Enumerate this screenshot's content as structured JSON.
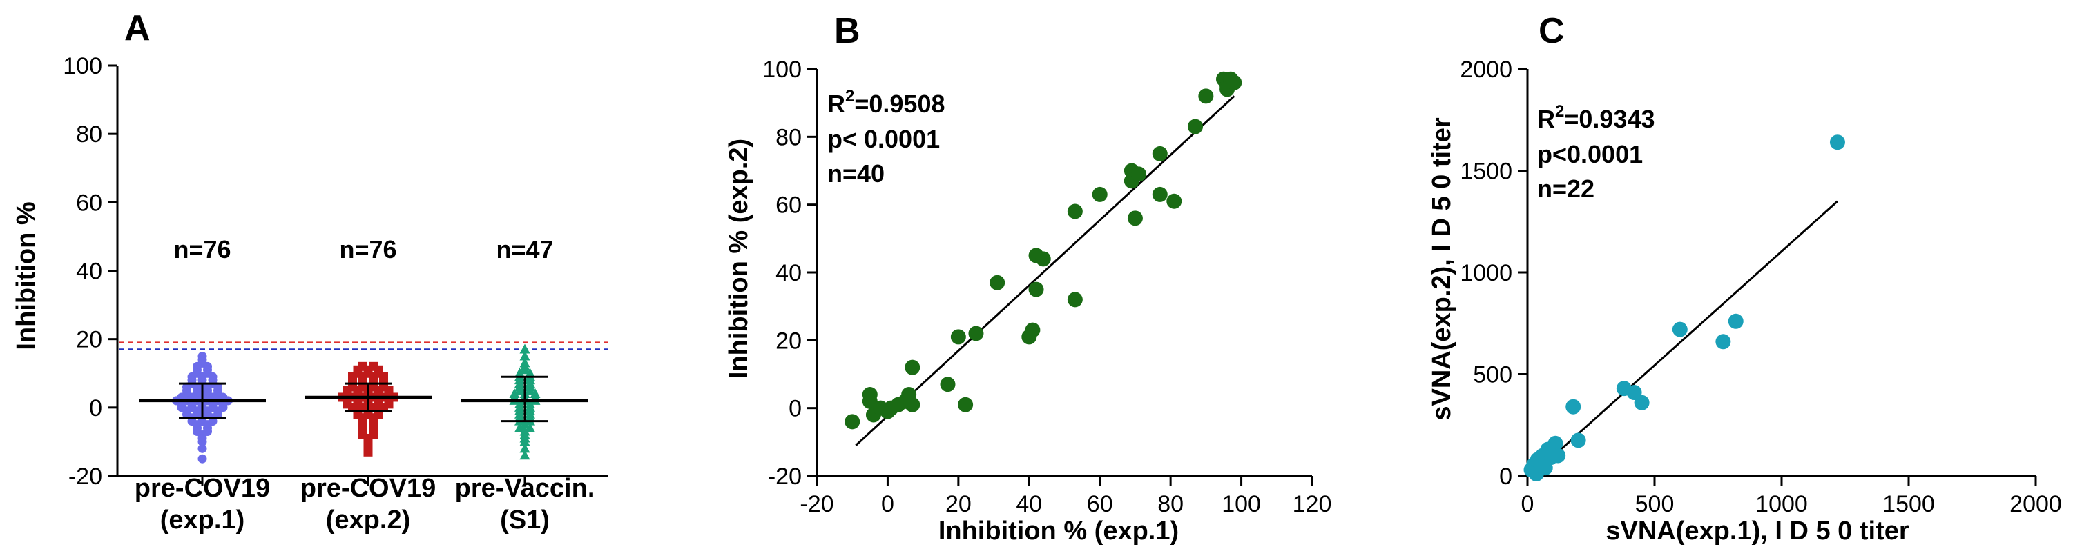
{
  "chart_data": [
    {
      "panel": "A",
      "type": "scatter",
      "subtype": "dot-plot with median and interquartile range",
      "ylabel": "Inhibition %",
      "ylim": [
        -20,
        100
      ],
      "yticks": [
        -20,
        0,
        20,
        40,
        60,
        80,
        100
      ],
      "categories": [
        {
          "line1": "pre-COV19",
          "line2": "(exp.1)"
        },
        {
          "line1": "pre-COV19",
          "line2": "(exp.2)"
        },
        {
          "line1": "pre-Vaccin.",
          "line2": "(S1)"
        }
      ],
      "n_labels": [
        "n=76",
        "n=76",
        "n=47"
      ],
      "groups": [
        {
          "name": "pre-COV19 (exp.1)",
          "color": "#6b6bea",
          "marker": "circle",
          "median": 2,
          "q1": -3,
          "q3": 7,
          "values": [
            15,
            14,
            13,
            12,
            12,
            11,
            11,
            10,
            10,
            9,
            9,
            9,
            8,
            8,
            8,
            7,
            7,
            7,
            6,
            6,
            6,
            6,
            5,
            5,
            5,
            5,
            4,
            4,
            4,
            4,
            3,
            3,
            3,
            3,
            3,
            2,
            2,
            2,
            2,
            2,
            2,
            1,
            1,
            1,
            1,
            1,
            0,
            0,
            0,
            0,
            0,
            -1,
            -1,
            -1,
            -1,
            -2,
            -2,
            -2,
            -2,
            -3,
            -3,
            -3,
            -4,
            -4,
            -4,
            -5,
            -5,
            -6,
            -6,
            -7,
            -7,
            -8,
            -9,
            -10,
            -12,
            -15
          ]
        },
        {
          "name": "pre-COV19 (exp.2)",
          "color": "#c01a1a",
          "marker": "square",
          "median": 3,
          "q1": -1,
          "q3": 7,
          "values": [
            12,
            12,
            11,
            11,
            11,
            10,
            10,
            10,
            9,
            9,
            9,
            9,
            8,
            8,
            8,
            8,
            7,
            7,
            7,
            7,
            6,
            6,
            6,
            6,
            5,
            5,
            5,
            5,
            5,
            4,
            4,
            4,
            4,
            4,
            3,
            3,
            3,
            3,
            3,
            3,
            2,
            2,
            2,
            2,
            2,
            1,
            1,
            1,
            1,
            1,
            0,
            0,
            0,
            0,
            -1,
            -1,
            -1,
            -2,
            -2,
            -2,
            -3,
            -3,
            -4,
            -4,
            -5,
            -5,
            -6,
            -6,
            -7,
            -7,
            -8,
            -8,
            -9,
            -10,
            -11,
            -13
          ]
        },
        {
          "name": "pre-Vaccin. (S1)",
          "color": "#1aa37a",
          "marker": "triangle",
          "median": 2,
          "q1": -4,
          "q3": 9,
          "values": [
            17,
            15,
            13,
            12,
            11,
            10,
            10,
            9,
            9,
            8,
            8,
            7,
            7,
            6,
            6,
            5,
            5,
            4,
            4,
            4,
            3,
            3,
            3,
            2,
            2,
            2,
            1,
            1,
            0,
            0,
            -1,
            -1,
            -2,
            -2,
            -3,
            -3,
            -4,
            -4,
            -5,
            -6,
            -6,
            -7,
            -8,
            -9,
            -10,
            -12,
            -14
          ]
        }
      ],
      "threshold_lines": [
        {
          "y": 19,
          "color": "#e03030",
          "style": "dashed"
        },
        {
          "y": 17,
          "color": "#2030c0",
          "style": "dashed"
        }
      ]
    },
    {
      "panel": "B",
      "type": "scatter",
      "xlabel": "Inhibition % (exp.1)",
      "ylabel": "Inhibition % (exp.2)",
      "xlim": [
        -20,
        120
      ],
      "ylim": [
        -20,
        100
      ],
      "xticks": [
        -20,
        0,
        20,
        40,
        60,
        80,
        100,
        120
      ],
      "yticks": [
        -20,
        0,
        20,
        40,
        60,
        80,
        100
      ],
      "color": "#1a6b14",
      "annotation": {
        "r2_prefix": "R",
        "r2_sup": "2",
        "r2_value": "=0.9508",
        "p": "p< 0.0001",
        "n": "n=40"
      },
      "fit_line": {
        "x": [
          -9,
          98
        ],
        "y": [
          -11,
          92
        ]
      },
      "points": [
        [
          -10,
          -4
        ],
        [
          -5,
          4
        ],
        [
          -5,
          2
        ],
        [
          -4,
          -2
        ],
        [
          -2,
          0
        ],
        [
          0,
          -1
        ],
        [
          1,
          0
        ],
        [
          3,
          1
        ],
        [
          5,
          2
        ],
        [
          6,
          4
        ],
        [
          7,
          1
        ],
        [
          7,
          12
        ],
        [
          17,
          7
        ],
        [
          20,
          21
        ],
        [
          22,
          1
        ],
        [
          25,
          22
        ],
        [
          31,
          37
        ],
        [
          40,
          21
        ],
        [
          41,
          23
        ],
        [
          42,
          35
        ],
        [
          42,
          45
        ],
        [
          44,
          44
        ],
        [
          53,
          32
        ],
        [
          53,
          58
        ],
        [
          60,
          63
        ],
        [
          69,
          70
        ],
        [
          69,
          67
        ],
        [
          70,
          56
        ],
        [
          71,
          69
        ],
        [
          77,
          63
        ],
        [
          77,
          75
        ],
        [
          81,
          61
        ],
        [
          87,
          83
        ],
        [
          90,
          92
        ],
        [
          95,
          97
        ],
        [
          96,
          95
        ],
        [
          97,
          96
        ],
        [
          97,
          97
        ],
        [
          96,
          94
        ],
        [
          98,
          96
        ]
      ]
    },
    {
      "panel": "C",
      "type": "scatter",
      "xlabel": "sVNA(exp.1), I D 5 0 titer",
      "ylabel": "sVNA(exp.2), I D 5 0 titer",
      "xlim": [
        0,
        2000
      ],
      "ylim": [
        0,
        2000
      ],
      "xticks": [
        0,
        500,
        1000,
        1500,
        2000
      ],
      "yticks": [
        0,
        500,
        1000,
        1500,
        2000
      ],
      "color": "#1aa0b8",
      "annotation": {
        "r2_prefix": "R",
        "r2_sup": "2",
        "r2_value": "=0.9343",
        "p": "p<0.0001",
        "n": "n=22"
      },
      "fit_line": {
        "x": [
          15,
          1220
        ],
        "y": [
          -30,
          1350
        ]
      },
      "points": [
        [
          15,
          30
        ],
        [
          25,
          55
        ],
        [
          30,
          20
        ],
        [
          40,
          80
        ],
        [
          50,
          60
        ],
        [
          60,
          100
        ],
        [
          70,
          40
        ],
        [
          90,
          90
        ],
        [
          110,
          160
        ],
        [
          120,
          100
        ],
        [
          180,
          340
        ],
        [
          200,
          175
        ],
        [
          380,
          430
        ],
        [
          420,
          410
        ],
        [
          450,
          360
        ],
        [
          600,
          720
        ],
        [
          770,
          660
        ],
        [
          820,
          760
        ],
        [
          1220,
          1640
        ],
        [
          35,
          10
        ],
        [
          55,
          45
        ],
        [
          80,
          130
        ]
      ]
    }
  ]
}
